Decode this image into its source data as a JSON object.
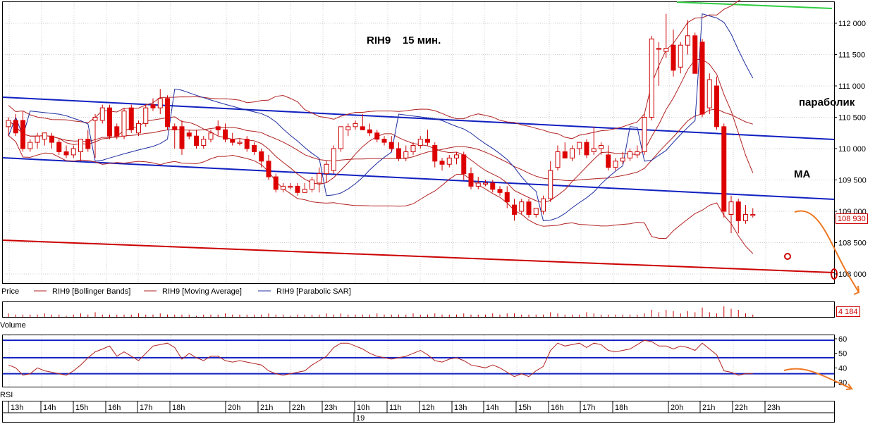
{
  "chart_data": [
    {
      "type": "candlestick",
      "panel": "price",
      "title": "RIH9    15 мин.",
      "colors": {
        "up": "#ffffff",
        "down": "#dd0000",
        "wick": "#cc0000",
        "bollinger": "#b22222",
        "ma": "#b22222",
        "sar": "#1f2fa0",
        "trendline_blue": "#1020c0",
        "trendline_red": "#cc0000",
        "trendline_green": "#2ecc40",
        "forecast": "#ee7722"
      },
      "ylim": [
        108050,
        112300
      ],
      "yticks": [
        "112 000",
        "111 500",
        "111 000",
        "110 500",
        "110 000",
        "109 500",
        "109 000",
        "108 500",
        "108 000"
      ],
      "yticks_values": [
        112000,
        111500,
        111000,
        110500,
        110000,
        109500,
        109000,
        108500,
        108000
      ],
      "last_price_label": "108 930",
      "last_price": 108930,
      "legend": [
        "Price",
        "RIH9 [Bollinger Bands]",
        "RIH9 [Moving Average]",
        "RIH9 [Parabolic SAR]"
      ],
      "annotations": [
        "параболик",
        "MA"
      ],
      "candles": [
        {
          "o": 110350,
          "h": 110500,
          "l": 110200,
          "c": 110450
        },
        {
          "o": 110450,
          "h": 110550,
          "l": 110200,
          "c": 110250
        },
        {
          "o": 110450,
          "h": 110600,
          "l": 109950,
          "c": 110000
        },
        {
          "o": 110000,
          "h": 110150,
          "l": 109950,
          "c": 110100
        },
        {
          "o": 110100,
          "h": 110250,
          "l": 110000,
          "c": 110200
        },
        {
          "o": 110150,
          "h": 110250,
          "l": 110050,
          "c": 110250
        },
        {
          "o": 110200,
          "h": 110250,
          "l": 110000,
          "c": 110100
        },
        {
          "o": 110100,
          "h": 110150,
          "l": 109900,
          "c": 109950
        },
        {
          "o": 109950,
          "h": 110050,
          "l": 109850,
          "c": 109900
        },
        {
          "o": 109900,
          "h": 110050,
          "l": 109850,
          "c": 110000
        },
        {
          "o": 109950,
          "h": 110150,
          "l": 109800,
          "c": 110150
        },
        {
          "o": 110150,
          "h": 110300,
          "l": 109950,
          "c": 110000
        },
        {
          "o": 110450,
          "h": 110550,
          "l": 109850,
          "c": 110500
        },
        {
          "o": 110450,
          "h": 110700,
          "l": 110400,
          "c": 110650
        },
        {
          "o": 110650,
          "h": 110700,
          "l": 110150,
          "c": 110200
        },
        {
          "o": 110350,
          "h": 110400,
          "l": 110150,
          "c": 110200
        },
        {
          "o": 110200,
          "h": 110650,
          "l": 110150,
          "c": 110600
        },
        {
          "o": 110650,
          "h": 110700,
          "l": 110250,
          "c": 110300
        },
        {
          "o": 110250,
          "h": 110450,
          "l": 110200,
          "c": 110400
        },
        {
          "o": 110400,
          "h": 110700,
          "l": 110350,
          "c": 110650
        },
        {
          "o": 110700,
          "h": 110800,
          "l": 110600,
          "c": 110650
        },
        {
          "o": 110650,
          "h": 110950,
          "l": 110550,
          "c": 110800
        },
        {
          "o": 110800,
          "h": 110850,
          "l": 110300,
          "c": 110350
        },
        {
          "o": 110350,
          "h": 110400,
          "l": 110000,
          "c": 110300
        },
        {
          "o": 110350,
          "h": 110450,
          "l": 109900,
          "c": 110000
        },
        {
          "o": 110250,
          "h": 110300,
          "l": 110150,
          "c": 110200
        },
        {
          "o": 110200,
          "h": 110300,
          "l": 110000,
          "c": 110050
        },
        {
          "o": 110050,
          "h": 110200,
          "l": 110000,
          "c": 110150
        },
        {
          "o": 110150,
          "h": 110300,
          "l": 110100,
          "c": 110250
        },
        {
          "o": 110350,
          "h": 110450,
          "l": 110200,
          "c": 110300
        },
        {
          "o": 110300,
          "h": 110400,
          "l": 110100,
          "c": 110150
        },
        {
          "o": 110150,
          "h": 110250,
          "l": 110050,
          "c": 110100
        },
        {
          "o": 110100,
          "h": 110150,
          "l": 110050,
          "c": 110100
        },
        {
          "o": 110150,
          "h": 110200,
          "l": 109950,
          "c": 110000
        },
        {
          "o": 110050,
          "h": 110100,
          "l": 109900,
          "c": 109950
        },
        {
          "o": 109950,
          "h": 110000,
          "l": 109700,
          "c": 109800
        },
        {
          "o": 109800,
          "h": 109900,
          "l": 109500,
          "c": 109550
        },
        {
          "o": 109550,
          "h": 109600,
          "l": 109300,
          "c": 109350
        },
        {
          "o": 109350,
          "h": 109450,
          "l": 109300,
          "c": 109400
        },
        {
          "o": 109400,
          "h": 109450,
          "l": 109350,
          "c": 109400
        },
        {
          "o": 109400,
          "h": 109450,
          "l": 109250,
          "c": 109300
        },
        {
          "o": 109300,
          "h": 109450,
          "l": 109300,
          "c": 109350
        },
        {
          "o": 109350,
          "h": 109550,
          "l": 109300,
          "c": 109500
        },
        {
          "o": 109450,
          "h": 109700,
          "l": 109300,
          "c": 109600
        },
        {
          "o": 109600,
          "h": 109800,
          "l": 109450,
          "c": 109750
        },
        {
          "o": 109650,
          "h": 110050,
          "l": 109600,
          "c": 110000
        },
        {
          "o": 110000,
          "h": 110350,
          "l": 109950,
          "c": 110350
        },
        {
          "o": 110300,
          "h": 110400,
          "l": 110200,
          "c": 110350
        },
        {
          "o": 110350,
          "h": 110450,
          "l": 110300,
          "c": 110400
        },
        {
          "o": 110350,
          "h": 110550,
          "l": 110300,
          "c": 110300
        },
        {
          "o": 110300,
          "h": 110400,
          "l": 110200,
          "c": 110250
        },
        {
          "o": 110250,
          "h": 110300,
          "l": 110100,
          "c": 110150
        },
        {
          "o": 110150,
          "h": 110200,
          "l": 110050,
          "c": 110100
        },
        {
          "o": 110100,
          "h": 110200,
          "l": 109950,
          "c": 110000
        },
        {
          "o": 110000,
          "h": 110100,
          "l": 109800,
          "c": 109850
        },
        {
          "o": 109850,
          "h": 110050,
          "l": 109800,
          "c": 109950
        },
        {
          "o": 109950,
          "h": 110100,
          "l": 109900,
          "c": 110050
        },
        {
          "o": 110050,
          "h": 110200,
          "l": 110000,
          "c": 110150
        },
        {
          "o": 110150,
          "h": 110300,
          "l": 110050,
          "c": 110100
        },
        {
          "o": 110050,
          "h": 110100,
          "l": 109700,
          "c": 109800
        },
        {
          "o": 109800,
          "h": 109850,
          "l": 109650,
          "c": 109750
        },
        {
          "o": 109750,
          "h": 109900,
          "l": 109700,
          "c": 109850
        },
        {
          "o": 109850,
          "h": 109950,
          "l": 109750,
          "c": 109900
        },
        {
          "o": 109900,
          "h": 109950,
          "l": 109500,
          "c": 109600
        },
        {
          "o": 109600,
          "h": 109700,
          "l": 109350,
          "c": 109400
        },
        {
          "o": 109400,
          "h": 109550,
          "l": 109350,
          "c": 109450
        },
        {
          "o": 109450,
          "h": 109500,
          "l": 109400,
          "c": 109450
        },
        {
          "o": 109450,
          "h": 109500,
          "l": 109300,
          "c": 109350
        },
        {
          "o": 109350,
          "h": 109400,
          "l": 109250,
          "c": 109300
        },
        {
          "o": 109300,
          "h": 109400,
          "l": 109050,
          "c": 109150
        },
        {
          "o": 109100,
          "h": 109200,
          "l": 108850,
          "c": 108950
        },
        {
          "o": 109000,
          "h": 109200,
          "l": 108950,
          "c": 109150
        },
        {
          "o": 109150,
          "h": 109200,
          "l": 108900,
          "c": 108950
        },
        {
          "o": 108950,
          "h": 109050,
          "l": 108900,
          "c": 109050
        },
        {
          "o": 109000,
          "h": 109250,
          "l": 108950,
          "c": 109200
        },
        {
          "o": 109200,
          "h": 109800,
          "l": 109150,
          "c": 109650
        },
        {
          "o": 109700,
          "h": 110050,
          "l": 109650,
          "c": 109950
        },
        {
          "o": 109950,
          "h": 110100,
          "l": 109850,
          "c": 109850
        },
        {
          "o": 109850,
          "h": 110050,
          "l": 109800,
          "c": 110000
        },
        {
          "o": 110000,
          "h": 110100,
          "l": 109900,
          "c": 110100
        },
        {
          "o": 110100,
          "h": 110150,
          "l": 109850,
          "c": 109900
        },
        {
          "o": 109950,
          "h": 110350,
          "l": 109900,
          "c": 110000
        },
        {
          "o": 110000,
          "h": 110100,
          "l": 109900,
          "c": 110050
        },
        {
          "o": 109900,
          "h": 110050,
          "l": 109650,
          "c": 109700
        },
        {
          "o": 109700,
          "h": 109850,
          "l": 109650,
          "c": 109800
        },
        {
          "o": 109800,
          "h": 109950,
          "l": 109750,
          "c": 109850
        },
        {
          "o": 109850,
          "h": 110000,
          "l": 109800,
          "c": 109950
        },
        {
          "o": 109900,
          "h": 110050,
          "l": 109850,
          "c": 109950
        },
        {
          "o": 109950,
          "h": 110550,
          "l": 109900,
          "c": 110500
        },
        {
          "o": 110500,
          "h": 111800,
          "l": 110450,
          "c": 111750
        },
        {
          "o": 111600,
          "h": 111700,
          "l": 111000,
          "c": 111600
        },
        {
          "o": 111550,
          "h": 112150,
          "l": 111450,
          "c": 111600
        },
        {
          "o": 111650,
          "h": 111900,
          "l": 111150,
          "c": 111250
        },
        {
          "o": 111300,
          "h": 111700,
          "l": 111200,
          "c": 111650
        },
        {
          "o": 111650,
          "h": 112050,
          "l": 111500,
          "c": 111800
        },
        {
          "o": 111800,
          "h": 111850,
          "l": 111200,
          "c": 111200
        },
        {
          "o": 111700,
          "h": 111750,
          "l": 110500,
          "c": 110550
        },
        {
          "o": 110650,
          "h": 111200,
          "l": 110550,
          "c": 111100
        },
        {
          "o": 111000,
          "h": 111150,
          "l": 110300,
          "c": 110350
        },
        {
          "o": 110350,
          "h": 110400,
          "l": 108900,
          "c": 109000
        },
        {
          "o": 108950,
          "h": 109250,
          "l": 108650,
          "c": 109150
        },
        {
          "o": 109150,
          "h": 109200,
          "l": 108650,
          "c": 108850
        },
        {
          "o": 108850,
          "h": 109100,
          "l": 108800,
          "c": 108950
        },
        {
          "o": 108950,
          "h": 109050,
          "l": 108900,
          "c": 108950
        }
      ]
    },
    {
      "type": "bar",
      "panel": "volume",
      "legend": "Volume",
      "last_value_label": "4 184",
      "values": [
        3,
        2,
        2,
        2,
        2,
        3,
        2,
        2,
        1,
        2,
        3,
        2,
        4,
        2,
        2,
        2,
        2,
        2,
        3,
        2,
        2,
        3,
        2,
        2,
        2,
        2,
        1,
        2,
        2,
        2,
        3,
        2,
        2,
        2,
        2,
        2,
        3,
        2,
        2,
        1,
        2,
        2,
        2,
        2,
        3,
        2,
        3,
        2,
        2,
        2,
        2,
        3,
        2,
        2,
        2,
        2,
        3,
        2,
        2,
        3,
        2,
        2,
        2,
        3,
        2,
        2,
        2,
        3,
        2,
        3,
        3,
        2,
        2,
        2,
        2,
        4,
        3,
        2,
        2,
        2,
        4,
        3,
        2,
        2,
        2,
        2,
        2,
        2,
        3,
        6,
        4,
        6,
        5,
        3,
        5,
        4,
        8,
        4,
        3,
        9,
        7,
        6,
        3,
        2
      ]
    },
    {
      "type": "line",
      "panel": "rsi",
      "legend": "RSI",
      "ylim": [
        28,
        61
      ],
      "yticks": [
        60,
        50,
        40,
        30
      ],
      "levels": [
        59,
        47,
        36
      ],
      "values": [
        42,
        40,
        35,
        36,
        40,
        38,
        37,
        36,
        35,
        38,
        42,
        47,
        51,
        53,
        55,
        48,
        51,
        48,
        45,
        50,
        55,
        56,
        57,
        54,
        46,
        50,
        47,
        45,
        48,
        48,
        45,
        44,
        45,
        44,
        43,
        42,
        38,
        36,
        35,
        36,
        37,
        38,
        42,
        45,
        48,
        54,
        57,
        57,
        55,
        53,
        50,
        48,
        47,
        46,
        47,
        48,
        50,
        52,
        49,
        45,
        44,
        46,
        47,
        45,
        42,
        41,
        40,
        42,
        40,
        37,
        34,
        36,
        34,
        38,
        41,
        52,
        57,
        55,
        56,
        57,
        54,
        57,
        56,
        52,
        51,
        52,
        53,
        56,
        59,
        58,
        55,
        55,
        53,
        55,
        54,
        52,
        57,
        53,
        49,
        38,
        37,
        35,
        36,
        36
      ]
    },
    {
      "type": "axis",
      "panel": "time",
      "time_labels": [
        "13h",
        "14h",
        "15h",
        "16h",
        "17h",
        "18h",
        "20h",
        "21h",
        "22h",
        "23h",
        "10h",
        "11h",
        "12h",
        "13h",
        "14h",
        "15h",
        "16h",
        "17h",
        "18h",
        "20h",
        "21h",
        "22h",
        "23h"
      ],
      "date_label": "19",
      "legend": [
        "Price",
        "Volume"
      ]
    }
  ]
}
